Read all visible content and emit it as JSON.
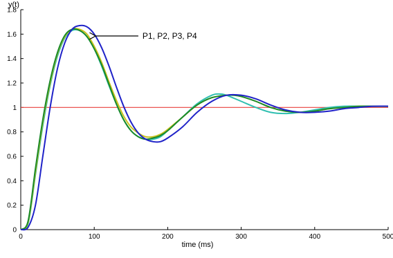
{
  "chart_data": {
    "type": "line",
    "title": "",
    "xlabel": "time (ms)",
    "ylabel": "y(t)",
    "xlim": [
      0,
      500
    ],
    "ylim": [
      0,
      1.8
    ],
    "xticks": [
      0,
      100,
      200,
      300,
      400,
      500
    ],
    "xtick_labels": [
      "0",
      "100",
      "200",
      "300",
      "400",
      "500"
    ],
    "yticks": [
      0,
      0.2,
      0.4,
      0.6,
      0.8,
      1,
      1.2,
      1.4,
      1.6,
      1.8
    ],
    "ytick_labels": [
      "0",
      "0.2",
      "0.4",
      "0.6",
      "0.8",
      "1",
      "1.2",
      "1.4",
      "1.6",
      "1.8"
    ],
    "grid": false,
    "reference_line": {
      "y": 1,
      "color": "#e8413c"
    },
    "annotation": {
      "text": "P1, P2, P3, P4",
      "arrow_target": [
        100,
        1.585
      ],
      "text_anchor": [
        160,
        1.585
      ]
    },
    "series": [
      {
        "color": "#2fbfb0",
        "x": [
          0,
          10,
          20,
          30,
          40,
          50,
          60,
          70,
          80,
          90,
          100,
          110,
          120,
          130,
          140,
          150,
          160,
          170,
          180,
          190,
          200,
          220,
          240,
          260,
          270,
          280,
          300,
          320,
          340,
          360,
          380,
          400,
          420,
          440,
          460,
          480,
          500
        ],
        "y": [
          0,
          0.05,
          0.45,
          0.85,
          1.18,
          1.42,
          1.57,
          1.63,
          1.63,
          1.58,
          1.48,
          1.34,
          1.18,
          1.03,
          0.9,
          0.81,
          0.76,
          0.74,
          0.74,
          0.76,
          0.81,
          0.92,
          1.03,
          1.1,
          1.11,
          1.1,
          1.05,
          1.0,
          0.96,
          0.95,
          0.96,
          0.98,
          1.0,
          1.01,
          1.01,
          1.01,
          1.01
        ]
      },
      {
        "color": "#c9c21e",
        "x": [
          0,
          10,
          20,
          30,
          40,
          50,
          60,
          70,
          80,
          90,
          100,
          110,
          120,
          130,
          140,
          150,
          160,
          170,
          180,
          190,
          200,
          220,
          240,
          260,
          280,
          290,
          300,
          320,
          340,
          360,
          380,
          400,
          420,
          440,
          460,
          480,
          500
        ],
        "y": [
          0,
          0.06,
          0.47,
          0.88,
          1.2,
          1.44,
          1.58,
          1.64,
          1.64,
          1.6,
          1.5,
          1.37,
          1.21,
          1.06,
          0.93,
          0.84,
          0.79,
          0.76,
          0.76,
          0.78,
          0.82,
          0.92,
          1.02,
          1.08,
          1.1,
          1.1,
          1.09,
          1.05,
          1.0,
          0.97,
          0.96,
          0.97,
          0.99,
          1.0,
          1.01,
          1.01,
          1.01
        ]
      },
      {
        "color": "#1a8a2a",
        "x": [
          0,
          10,
          20,
          30,
          40,
          50,
          60,
          70,
          80,
          90,
          100,
          110,
          120,
          130,
          140,
          150,
          160,
          170,
          180,
          190,
          200,
          220,
          240,
          260,
          280,
          290,
          300,
          320,
          340,
          360,
          380,
          400,
          420,
          440,
          460,
          480,
          500
        ],
        "y": [
          0,
          0.07,
          0.5,
          0.9,
          1.22,
          1.45,
          1.59,
          1.64,
          1.63,
          1.58,
          1.48,
          1.35,
          1.19,
          1.03,
          0.9,
          0.81,
          0.76,
          0.74,
          0.75,
          0.77,
          0.81,
          0.92,
          1.02,
          1.08,
          1.1,
          1.1,
          1.09,
          1.05,
          1.0,
          0.97,
          0.96,
          0.97,
          0.99,
          1.0,
          1.01,
          1.01,
          1.01
        ]
      },
      {
        "color": "#1f22c8",
        "x": [
          0,
          10,
          20,
          30,
          40,
          50,
          60,
          70,
          80,
          90,
          100,
          110,
          120,
          130,
          140,
          150,
          160,
          170,
          180,
          190,
          200,
          220,
          240,
          260,
          280,
          300,
          320,
          340,
          360,
          380,
          400,
          420,
          440,
          460,
          480,
          500
        ],
        "y": [
          0,
          0.02,
          0.2,
          0.6,
          1.0,
          1.32,
          1.53,
          1.64,
          1.67,
          1.66,
          1.6,
          1.49,
          1.34,
          1.17,
          1.01,
          0.88,
          0.79,
          0.74,
          0.72,
          0.72,
          0.75,
          0.84,
          0.96,
          1.05,
          1.1,
          1.1,
          1.07,
          1.02,
          0.98,
          0.96,
          0.96,
          0.97,
          0.99,
          1.0,
          1.01,
          1.01
        ]
      }
    ]
  }
}
